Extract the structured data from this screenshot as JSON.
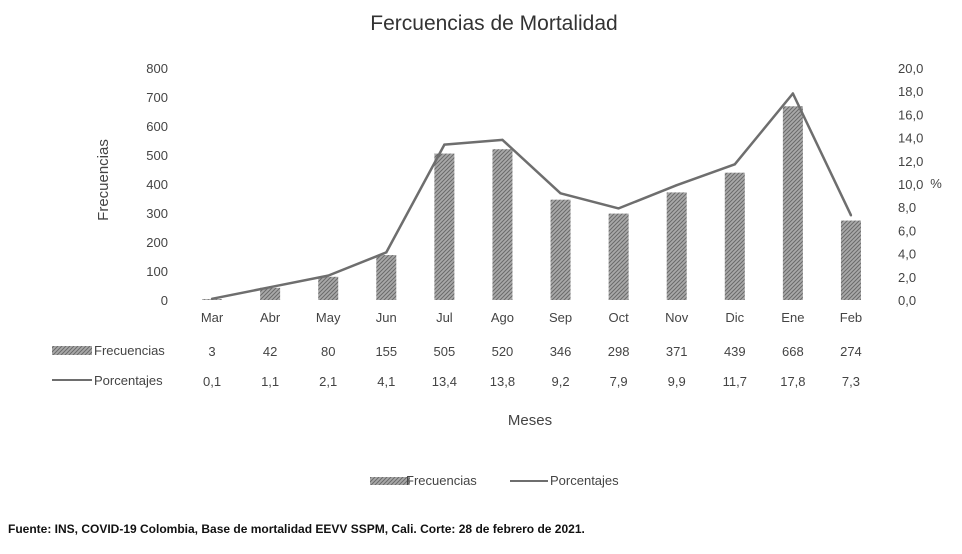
{
  "chart_data": {
    "type": "bar",
    "title": "Fercuencias de Mortalidad",
    "xlabel": "Meses",
    "ylabel": "Frecuencias",
    "y2label": "%",
    "categories": [
      "Mar",
      "Abr",
      "May",
      "Jun",
      "Jul",
      "Ago",
      "Sep",
      "Oct",
      "Nov",
      "Dic",
      "Ene",
      "Feb"
    ],
    "series": [
      {
        "name": "Frecuencias",
        "kind": "bar",
        "axis": "left",
        "values": [
          3,
          42,
          80,
          155,
          505,
          520,
          346,
          298,
          371,
          439,
          668,
          274
        ],
        "value_labels": [
          "3",
          "42",
          "80",
          "155",
          "505",
          "520",
          "346",
          "298",
          "371",
          "439",
          "668",
          "274"
        ]
      },
      {
        "name": "Porcentajes",
        "kind": "line",
        "axis": "right",
        "values": [
          0.1,
          1.1,
          2.1,
          4.1,
          13.4,
          13.8,
          9.2,
          7.9,
          9.9,
          11.7,
          17.8,
          7.3
        ],
        "value_labels": [
          "0,1",
          "1,1",
          "2,1",
          "4,1",
          "13,4",
          "13,8",
          "9,2",
          "7,9",
          "9,9",
          "11,7",
          "17,8",
          "7,3"
        ]
      }
    ],
    "y_ticks": [
      "0",
      "100",
      "200",
      "300",
      "400",
      "500",
      "600",
      "700",
      "800"
    ],
    "y2_ticks": [
      "0,0",
      "2,0",
      "4,0",
      "6,0",
      "8,0",
      "10,0",
      "12,0",
      "14,0",
      "16,0",
      "18,0",
      "20,0"
    ],
    "ylim": [
      0,
      800
    ],
    "y2lim": [
      0,
      20
    ],
    "legend": {
      "position": "bottom",
      "items": [
        "Frecuencias",
        "Porcentajes"
      ]
    },
    "data_table": true,
    "grid": false,
    "colors": {
      "bar": "#8c8c8c",
      "line": "#6e6e6e",
      "text": "#444444"
    }
  },
  "footer": {
    "source": "Fuente: INS, COVID-19 Colombia, Base de mortalidad EEVV SSPM, Cali. Corte: 28 de febrero de 2021."
  }
}
